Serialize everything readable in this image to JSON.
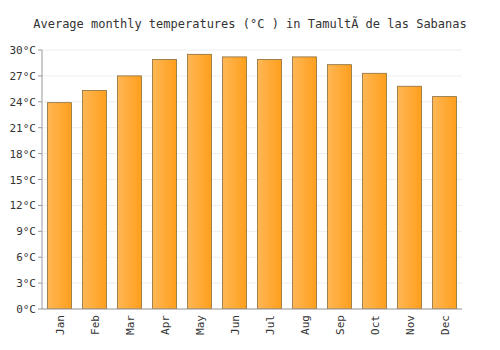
{
  "chart_data": {
    "type": "bar",
    "title": "Average monthly temperatures (°C ) in TamultÃ de las Sabanas",
    "categories": [
      "Jan",
      "Feb",
      "Mar",
      "Apr",
      "May",
      "Jun",
      "Jul",
      "Aug",
      "Sep",
      "Oct",
      "Nov",
      "Dec"
    ],
    "values": [
      23.9,
      25.3,
      27.0,
      28.9,
      29.5,
      29.2,
      28.9,
      29.2,
      28.3,
      27.3,
      25.8,
      24.6
    ],
    "color": "#ff9f1c",
    "ylim": [
      0,
      30
    ],
    "yticks": [
      {
        "value": 0,
        "label": "0°C"
      },
      {
        "value": 3,
        "label": "3°C"
      },
      {
        "value": 6,
        "label": "6°C"
      },
      {
        "value": 9,
        "label": "9°C"
      },
      {
        "value": 12,
        "label": "12°C"
      },
      {
        "value": 15,
        "label": "15°C"
      },
      {
        "value": 18,
        "label": "18°C"
      },
      {
        "value": 21,
        "label": "21°C"
      },
      {
        "value": 24,
        "label": "24°C"
      },
      {
        "value": 27,
        "label": "27°C"
      },
      {
        "value": 30,
        "label": "30°C"
      }
    ],
    "grid": true
  }
}
